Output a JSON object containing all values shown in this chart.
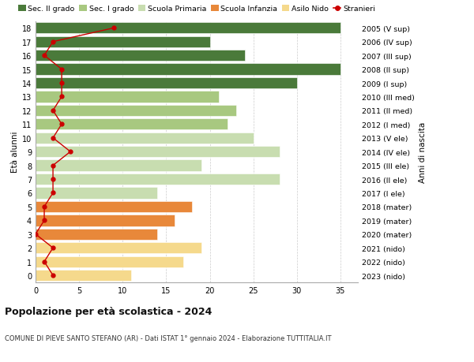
{
  "ages": [
    0,
    1,
    2,
    3,
    4,
    5,
    6,
    7,
    8,
    9,
    10,
    11,
    12,
    13,
    14,
    15,
    16,
    17,
    18
  ],
  "right_labels": [
    "2023 (nido)",
    "2022 (nido)",
    "2021 (nido)",
    "2020 (mater)",
    "2019 (mater)",
    "2018 (mater)",
    "2017 (I ele)",
    "2016 (II ele)",
    "2015 (III ele)",
    "2014 (IV ele)",
    "2013 (V ele)",
    "2012 (I med)",
    "2011 (II med)",
    "2010 (III med)",
    "2009 (I sup)",
    "2008 (II sup)",
    "2007 (III sup)",
    "2006 (IV sup)",
    "2005 (V sup)"
  ],
  "bar_values": [
    11,
    17,
    19,
    14,
    16,
    18,
    14,
    28,
    19,
    28,
    25,
    22,
    23,
    21,
    30,
    35,
    24,
    20,
    35
  ],
  "bar_colors": [
    "#f5d98c",
    "#f5d98c",
    "#f5d98c",
    "#e8883a",
    "#e8883a",
    "#e8883a",
    "#c8ddb0",
    "#c8ddb0",
    "#c8ddb0",
    "#c8ddb0",
    "#c8ddb0",
    "#a8c880",
    "#a8c880",
    "#a8c880",
    "#4a7a3a",
    "#4a7a3a",
    "#4a7a3a",
    "#4a7a3a",
    "#4a7a3a"
  ],
  "stranieri_values": [
    2,
    1,
    2,
    0,
    1,
    1,
    2,
    2,
    2,
    4,
    2,
    3,
    2,
    3,
    3,
    3,
    1,
    2,
    9
  ],
  "legend_labels": [
    "Sec. II grado",
    "Sec. I grado",
    "Scuola Primaria",
    "Scuola Infanzia",
    "Asilo Nido",
    "Stranieri"
  ],
  "legend_colors": [
    "#4a7a3a",
    "#a8c880",
    "#c8ddb0",
    "#e8883a",
    "#f5d98c",
    "#cc0000"
  ],
  "title": "Popolazione per età scolastica - 2024",
  "subtitle": "COMUNE DI PIEVE SANTO STEFANO (AR) - Dati ISTAT 1° gennaio 2024 - Elaborazione TUTTITALIA.IT",
  "xlabel_left": "Età alunni",
  "ylabel_right": "Anni di nascita",
  "xlim": [
    0,
    37
  ],
  "xticks": [
    0,
    5,
    10,
    15,
    20,
    25,
    30,
    35
  ],
  "background_color": "#ffffff",
  "grid_color": "#cccccc"
}
